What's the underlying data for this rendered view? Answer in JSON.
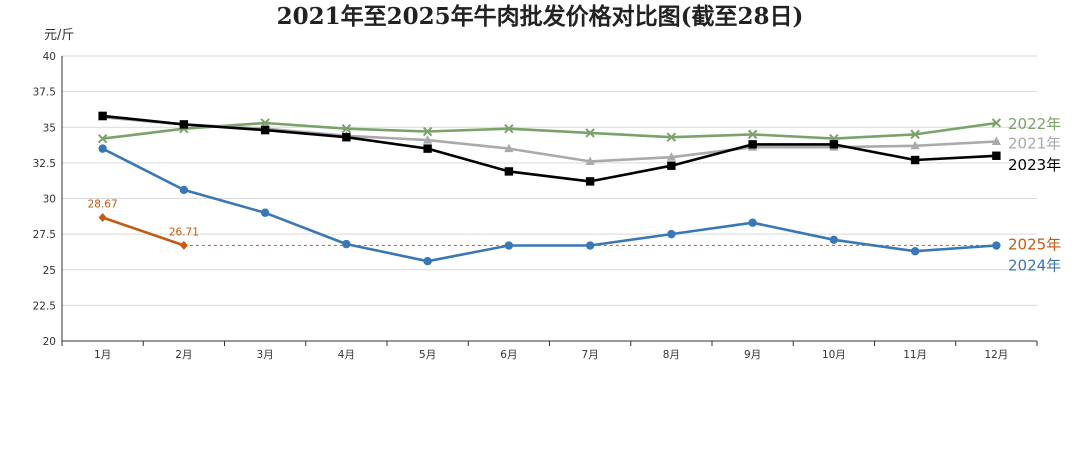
{
  "chart_data": {
    "type": "line",
    "title": "2021年至2025年牛肉批发价格对比图(截至28日)",
    "ylabel": "元/斤",
    "xlabel": "",
    "categories": [
      "1月",
      "2月",
      "3月",
      "4月",
      "5月",
      "6月",
      "7月",
      "8月",
      "9月",
      "10月",
      "11月",
      "12月"
    ],
    "ylim": [
      20,
      40
    ],
    "yticks": [
      "20",
      "22.5",
      "25",
      "27.5",
      "30",
      "32.5",
      "35",
      "37.5",
      "40"
    ],
    "grid": true,
    "series": [
      {
        "name": "2022年",
        "color": "#7aa36a",
        "marker": "x",
        "values": [
          34.2,
          34.9,
          35.3,
          34.9,
          34.7,
          34.9,
          34.6,
          34.3,
          34.5,
          34.2,
          34.5,
          35.3
        ]
      },
      {
        "name": "2021年",
        "color": "#aaaaaa",
        "marker": "triangle",
        "values": [
          35.7,
          35.2,
          34.9,
          34.4,
          34.1,
          33.5,
          32.6,
          32.9,
          33.6,
          33.6,
          33.7,
          34.0
        ]
      },
      {
        "name": "2023年",
        "color": "#000000",
        "marker": "square",
        "values": [
          35.8,
          35.2,
          34.8,
          34.3,
          33.5,
          31.9,
          31.2,
          32.3,
          33.8,
          33.8,
          32.7,
          33.0
        ]
      },
      {
        "name": "2025年",
        "color": "#c55a11",
        "marker": "diamond",
        "values": [
          28.67,
          26.71,
          null,
          null,
          null,
          null,
          null,
          null,
          null,
          null,
          null,
          null
        ],
        "data_labels": [
          "28.67",
          "26.71"
        ],
        "reference_line": 26.71
      },
      {
        "name": "2024年",
        "color": "#3a78b5",
        "marker": "circle",
        "values": [
          33.5,
          30.6,
          29.0,
          26.8,
          25.6,
          26.7,
          26.7,
          27.5,
          28.3,
          27.1,
          26.3,
          26.7
        ]
      }
    ],
    "legend_placement": "right-end labels"
  }
}
